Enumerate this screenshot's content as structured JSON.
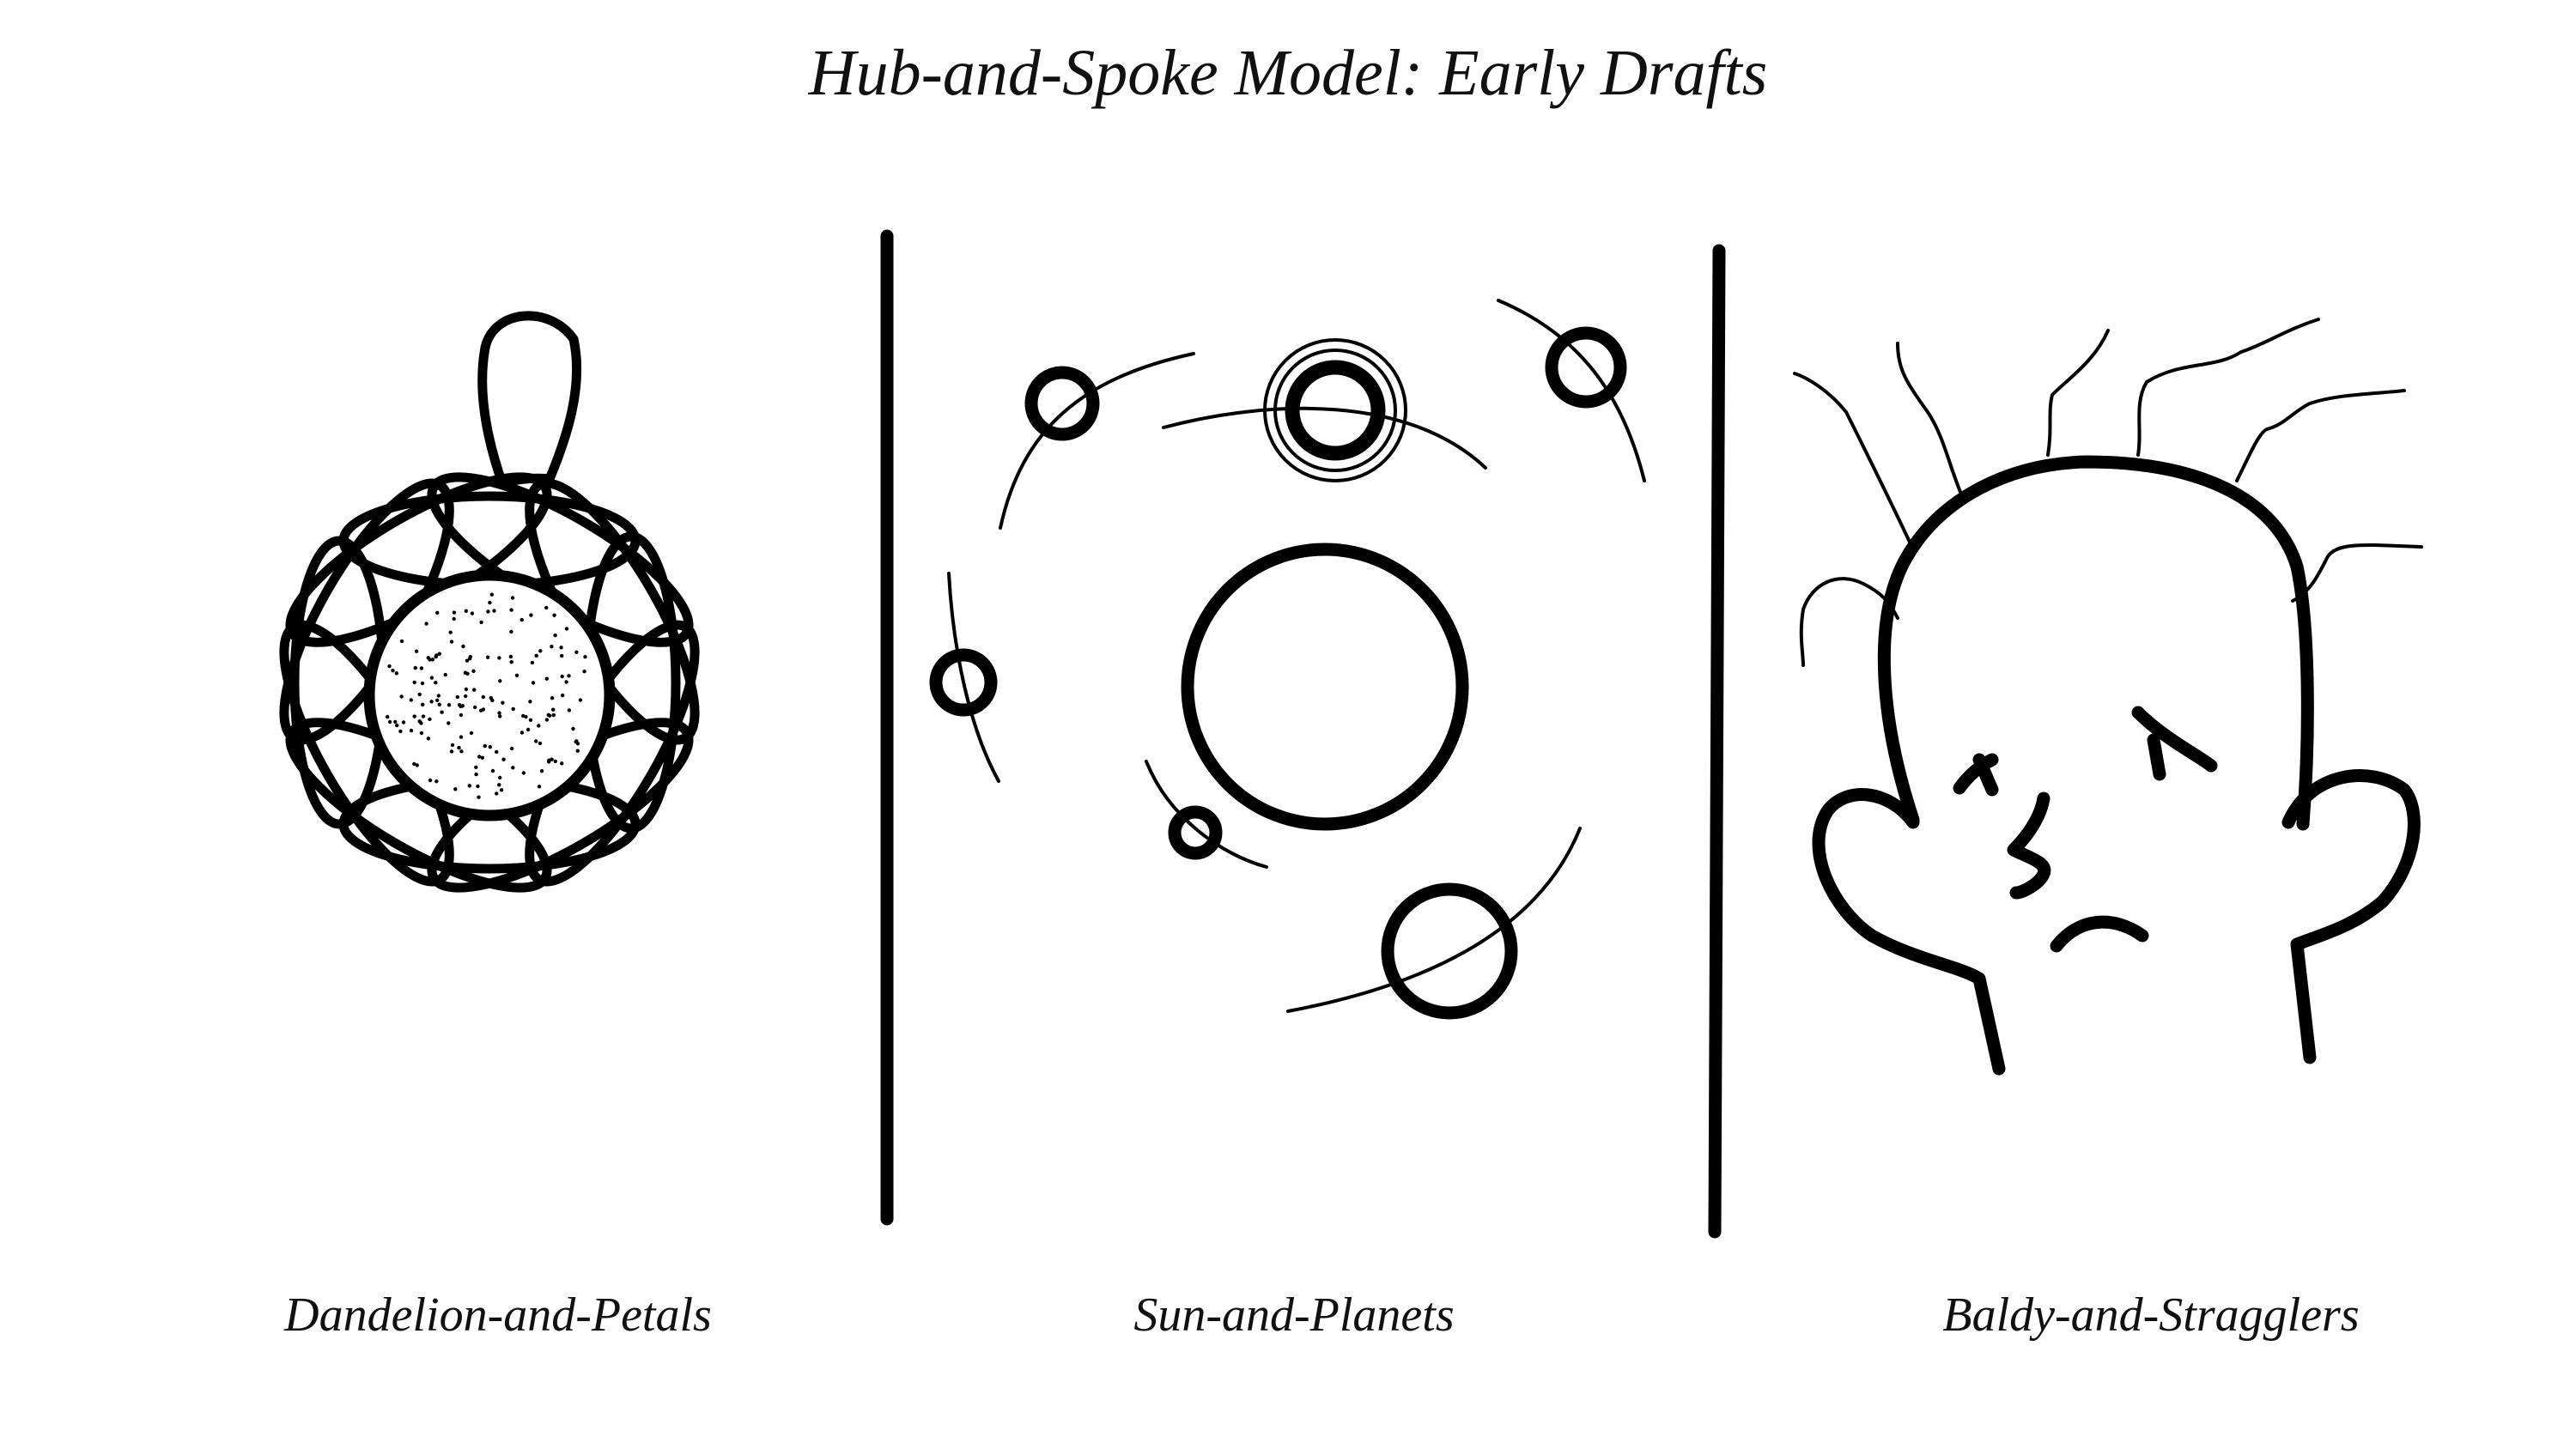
{
  "title": "Hub-and-Spoke Model: Early Drafts",
  "panels": [
    {
      "caption": "Dandelion-and-Petals",
      "icon": "flower-icon"
    },
    {
      "caption": "Sun-and-Planets",
      "icon": "solar-system-icon"
    },
    {
      "caption": "Baldy-and-Stragglers",
      "icon": "bald-head-icon"
    }
  ],
  "colors": {
    "ink": "#000000",
    "background": "#ffffff"
  }
}
